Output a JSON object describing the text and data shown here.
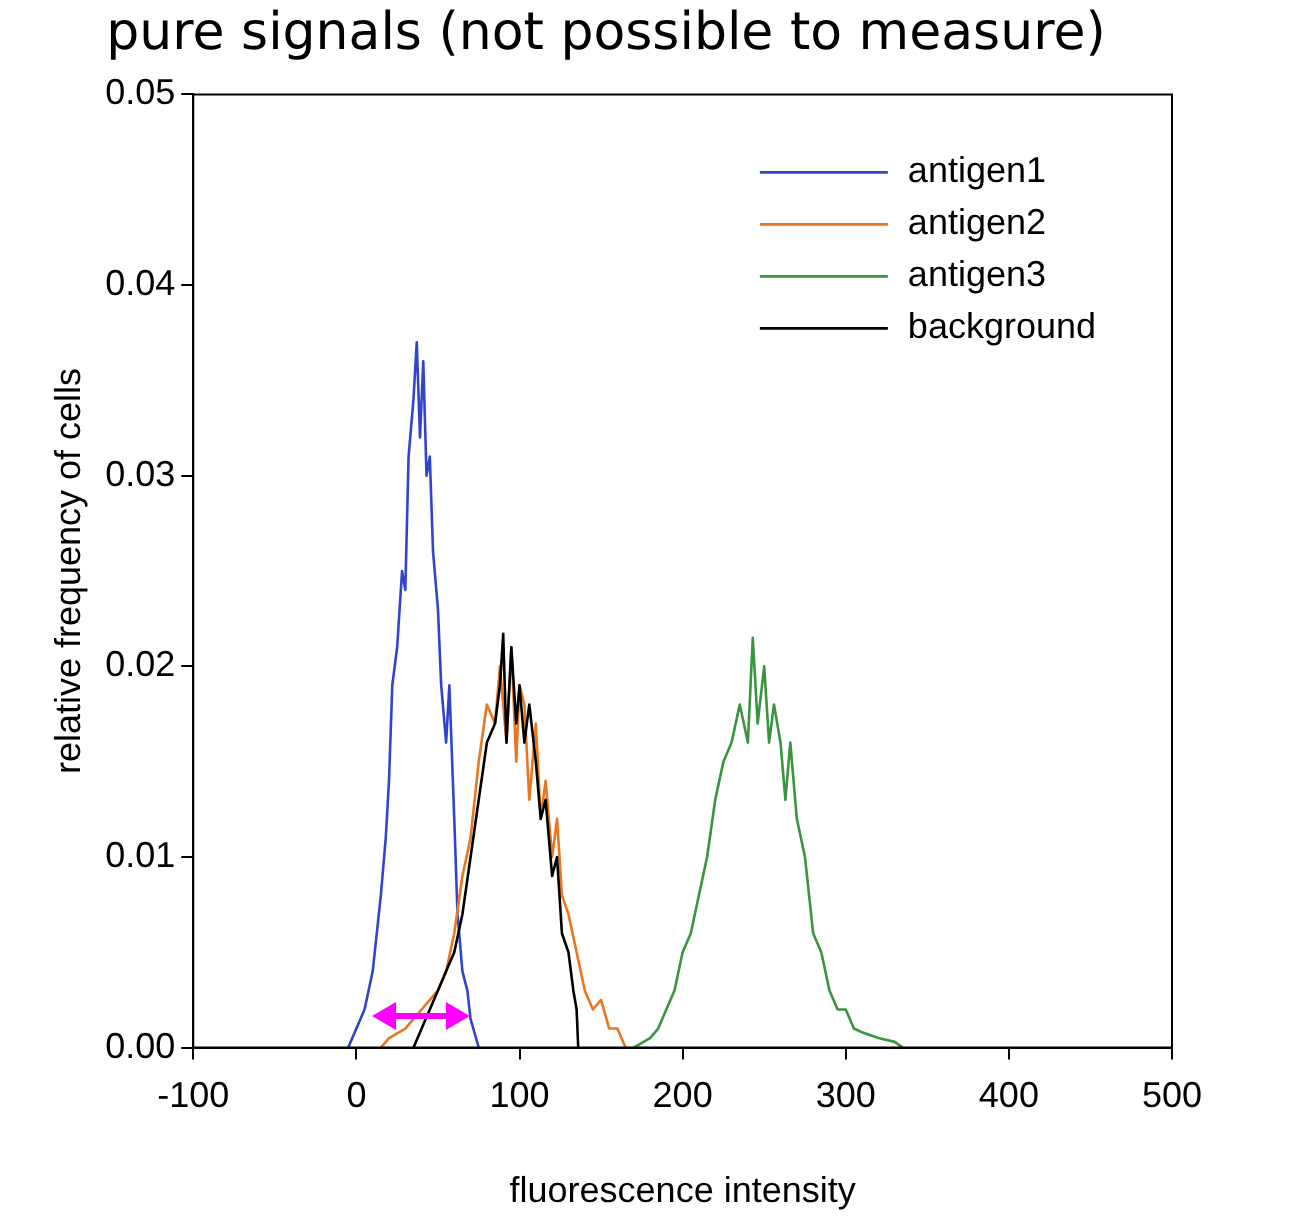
{
  "chart_data": {
    "type": "line",
    "title": "pure signals (not possible to measure)",
    "xlabel": "fluorescence intensity",
    "ylabel": "relative frequency of cells",
    "xlim": [
      -100,
      500
    ],
    "xticks": [
      -100,
      0,
      100,
      200,
      300,
      400,
      500
    ],
    "ylim": [
      0,
      0.05
    ],
    "yticks": [
      {
        "value": 0,
        "label": "0.00"
      },
      {
        "value": 0.01,
        "label": "0.01"
      },
      {
        "value": 0.02,
        "label": "0.02"
      },
      {
        "value": 0.03,
        "label": "0.03"
      },
      {
        "value": 0.04,
        "label": "0.04"
      },
      {
        "value": 0.05,
        "label": "0.05"
      }
    ],
    "grid": false,
    "legend": "top right",
    "marker": "none",
    "line_style": "solid",
    "series": [
      {
        "name": "antigen1",
        "color": "#3344cc",
        "x": [
          -5,
          0,
          5,
          10,
          15,
          18,
          20,
          22,
          25,
          28,
          30,
          32,
          35,
          37,
          39,
          41,
          43,
          45,
          47,
          50,
          52,
          55,
          57,
          60,
          62,
          65,
          68,
          70,
          75
        ],
        "values": [
          0,
          0.001,
          0.002,
          0.004,
          0.008,
          0.011,
          0.014,
          0.019,
          0.021,
          0.025,
          0.024,
          0.031,
          0.034,
          0.037,
          0.032,
          0.036,
          0.03,
          0.031,
          0.026,
          0.023,
          0.019,
          0.016,
          0.019,
          0.012,
          0.007,
          0.004,
          0.003,
          0.0015,
          0
        ]
      },
      {
        "name": "antigen2",
        "color": "#e87722",
        "x": [
          15,
          20,
          30,
          40,
          50,
          55,
          60,
          65,
          70,
          75,
          80,
          85,
          88,
          92,
          95,
          98,
          100,
          103,
          106,
          110,
          113,
          116,
          120,
          123,
          126,
          130,
          135,
          140,
          145,
          150,
          155,
          160,
          165
        ],
        "values": [
          0,
          0.0005,
          0.001,
          0.002,
          0.003,
          0.004,
          0.006,
          0.009,
          0.011,
          0.015,
          0.018,
          0.017,
          0.02,
          0.016,
          0.021,
          0.015,
          0.019,
          0.018,
          0.013,
          0.017,
          0.012,
          0.014,
          0.01,
          0.012,
          0.008,
          0.007,
          0.005,
          0.003,
          0.002,
          0.0025,
          0.001,
          0.001,
          0
        ]
      },
      {
        "name": "antigen3",
        "color": "#3a9440",
        "x": [
          170,
          180,
          185,
          190,
          195,
          200,
          205,
          210,
          215,
          220,
          225,
          230,
          235,
          240,
          243,
          246,
          250,
          253,
          256,
          260,
          263,
          266,
          270,
          275,
          280,
          285,
          290,
          295,
          300,
          305,
          310,
          320,
          330,
          335
        ],
        "values": [
          0,
          0.0005,
          0.001,
          0.002,
          0.003,
          0.005,
          0.006,
          0.008,
          0.01,
          0.013,
          0.015,
          0.016,
          0.018,
          0.016,
          0.0215,
          0.017,
          0.02,
          0.016,
          0.018,
          0.016,
          0.013,
          0.016,
          0.012,
          0.01,
          0.006,
          0.005,
          0.003,
          0.002,
          0.002,
          0.001,
          0.0008,
          0.0005,
          0.0003,
          0
        ]
      },
      {
        "name": "background",
        "color": "#000000",
        "x": [
          35,
          40,
          45,
          50,
          55,
          60,
          65,
          70,
          75,
          80,
          85,
          88,
          90,
          92,
          95,
          98,
          100,
          103,
          106,
          110,
          113,
          116,
          120,
          123,
          126,
          130,
          133,
          135,
          136
        ],
        "values": [
          0,
          0.001,
          0.002,
          0.003,
          0.004,
          0.005,
          0.007,
          0.01,
          0.013,
          0.016,
          0.017,
          0.019,
          0.0217,
          0.016,
          0.021,
          0.017,
          0.019,
          0.016,
          0.018,
          0.015,
          0.012,
          0.013,
          0.009,
          0.01,
          0.006,
          0.005,
          0.003,
          0.002,
          0
        ]
      }
    ]
  }
}
